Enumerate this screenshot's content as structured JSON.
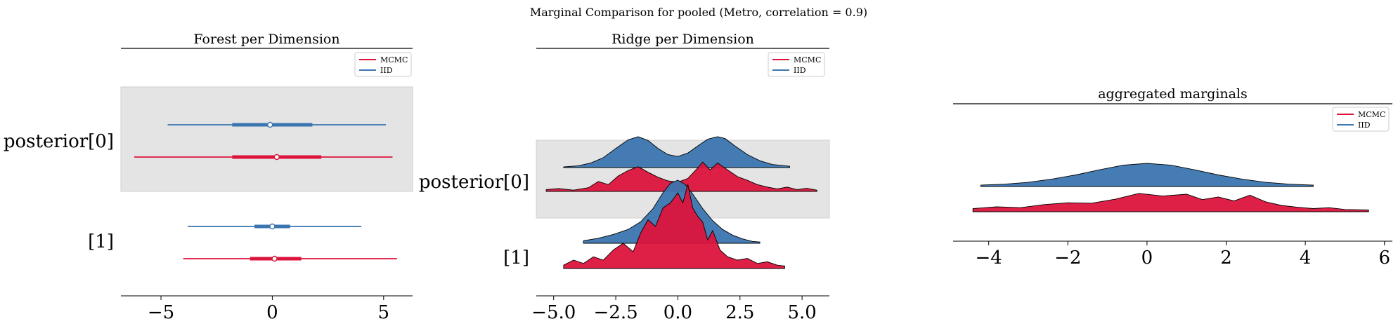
{
  "suptitle": "Marginal Comparison for pooled (Metro, correlation = 0.9)",
  "colors": {
    "mcmc": "#dc143c",
    "iid": "#3b75af",
    "band": "#e4e4e4"
  },
  "chart_data": [
    {
      "type": "forest",
      "title": "Forest per Dimension",
      "legend": {
        "placement": "upper-right",
        "entries": [
          "MCMC",
          "IID"
        ]
      },
      "xlim": [
        -6.8,
        6.3
      ],
      "xticks": [
        -5,
        0,
        5
      ],
      "xtick_labels": [
        "−5",
        "0",
        "5"
      ],
      "ylabels": [
        "posterior[0]",
        "[1]"
      ],
      "rows": [
        {
          "label": "posterior[0]",
          "band": true,
          "series": [
            {
              "name": "IID",
              "hdi94": [
                -4.7,
                5.1
              ],
              "hdi50": [
                -1.8,
                1.8
              ],
              "mean": -0.1
            },
            {
              "name": "MCMC",
              "hdi94": [
                -6.2,
                5.4
              ],
              "hdi50": [
                -1.8,
                2.2
              ],
              "mean": 0.2
            }
          ]
        },
        {
          "label": "[1]",
          "band": false,
          "series": [
            {
              "name": "IID",
              "hdi94": [
                -3.8,
                4.0
              ],
              "hdi50": [
                -0.8,
                0.8
              ],
              "mean": 0.0
            },
            {
              "name": "MCMC",
              "hdi94": [
                -4.0,
                5.6
              ],
              "hdi50": [
                -1.0,
                1.3
              ],
              "mean": 0.1
            }
          ]
        }
      ]
    },
    {
      "type": "ridgeline",
      "title": "Ridge per Dimension",
      "legend": {
        "placement": "upper-right",
        "entries": [
          "MCMC",
          "IID"
        ]
      },
      "xlim": [
        -5.7,
        6.1
      ],
      "xticks": [
        -5.0,
        -2.5,
        0.0,
        2.5,
        5.0
      ],
      "xtick_labels": [
        "−5.0",
        "−2.5",
        "0.0",
        "2.5",
        "5.0"
      ],
      "ylabels": [
        "posterior[0]",
        "[1]"
      ],
      "rows": [
        {
          "label": "posterior[0]",
          "band": true,
          "series": [
            {
              "name": "IID",
              "range": [
                -4.6,
                4.5
              ],
              "x": [
                -4.6,
                -4,
                -3.5,
                -3,
                -2.5,
                -2,
                -1.6,
                -1.2,
                -0.8,
                -0.4,
                0,
                0.4,
                0.8,
                1.2,
                1.6,
                1.9,
                2.3,
                2.8,
                3.3,
                3.8,
                4.5
              ],
              "y": [
                0.02,
                0.06,
                0.15,
                0.32,
                0.62,
                0.9,
                1.0,
                0.88,
                0.62,
                0.42,
                0.36,
                0.47,
                0.7,
                0.92,
                1.0,
                0.94,
                0.7,
                0.42,
                0.22,
                0.1,
                0.04
              ]
            },
            {
              "name": "MCMC",
              "range": [
                -5.3,
                5.6
              ],
              "x": [
                -5.3,
                -4.8,
                -4.2,
                -3.6,
                -3.2,
                -2.8,
                -2.4,
                -2,
                -1.6,
                -1.2,
                -0.8,
                -0.4,
                0,
                0.4,
                0.8,
                1.0,
                1.3,
                1.6,
                2,
                2.4,
                2.8,
                3.2,
                3.6,
                4,
                4.4,
                4.8,
                5.2,
                5.6
              ],
              "y": [
                0.06,
                0.09,
                0.04,
                0.12,
                0.32,
                0.22,
                0.5,
                0.68,
                0.8,
                0.62,
                0.46,
                0.34,
                0.3,
                0.42,
                0.76,
                0.95,
                0.7,
                0.92,
                0.7,
                0.48,
                0.36,
                0.22,
                0.14,
                0.08,
                0.14,
                0.06,
                0.1,
                0.04
              ]
            }
          ]
        },
        {
          "label": "[1]",
          "band": false,
          "series": [
            {
              "name": "IID",
              "range": [
                -3.8,
                3.3
              ],
              "x": [
                -3.8,
                -3.2,
                -2.6,
                -2,
                -1.5,
                -1,
                -0.6,
                -0.3,
                0,
                0.3,
                0.6,
                1,
                1.4,
                1.8,
                2.2,
                2.6,
                3.0,
                3.3
              ],
              "y": [
                0.04,
                0.08,
                0.14,
                0.22,
                0.34,
                0.55,
                0.8,
                0.95,
                1.0,
                0.93,
                0.78,
                0.55,
                0.36,
                0.22,
                0.13,
                0.07,
                0.03,
                0.02
              ]
            },
            {
              "name": "MCMC",
              "range": [
                -4.6,
                4.3
              ],
              "x": [
                -4.6,
                -4.2,
                -3.8,
                -3.4,
                -3,
                -2.6,
                -2.2,
                -1.8,
                -1.5,
                -1.2,
                -0.9,
                -0.6,
                -0.3,
                0,
                0.2,
                0.4,
                0.6,
                0.8,
                1.0,
                1.2,
                1.4,
                1.7,
                2,
                2.4,
                2.8,
                3.2,
                3.6,
                4.0,
                4.3
              ],
              "y": [
                0.04,
                0.1,
                0.06,
                0.14,
                0.1,
                0.22,
                0.3,
                0.2,
                0.42,
                0.58,
                0.5,
                0.72,
                0.78,
                0.9,
                0.78,
                1.0,
                0.72,
                0.62,
                0.55,
                0.34,
                0.45,
                0.22,
                0.14,
                0.1,
                0.12,
                0.06,
                0.08,
                0.04,
                0.03
              ]
            }
          ]
        }
      ]
    },
    {
      "type": "area",
      "title": "aggregated marginals",
      "legend": {
        "placement": "upper-right",
        "entries": [
          "MCMC",
          "IID"
        ]
      },
      "xlim": [
        -4.9,
        6.2
      ],
      "xticks": [
        -4,
        -2,
        0,
        2,
        4,
        6
      ],
      "xtick_labels": [
        "−4",
        "−2",
        "0",
        "2",
        "4",
        "6"
      ],
      "series": [
        {
          "name": "IID",
          "range": [
            -4.2,
            4.2
          ],
          "x": [
            -4.2,
            -3.6,
            -3,
            -2.4,
            -1.8,
            -1.2,
            -0.6,
            0,
            0.6,
            1.2,
            1.8,
            2.4,
            3,
            3.6,
            4.2
          ],
          "y": [
            0.06,
            0.1,
            0.18,
            0.32,
            0.5,
            0.72,
            0.92,
            1.0,
            0.92,
            0.72,
            0.5,
            0.32,
            0.18,
            0.1,
            0.06
          ]
        },
        {
          "name": "MCMC",
          "range": [
            -4.4,
            5.6
          ],
          "x": [
            -4.4,
            -3.8,
            -3.2,
            -2.6,
            -2,
            -1.4,
            -0.8,
            -0.2,
            0.4,
            1,
            1.4,
            1.8,
            2.2,
            2.6,
            3,
            3.4,
            3.8,
            4.2,
            4.6,
            5,
            5.6
          ],
          "y": [
            0.14,
            0.22,
            0.18,
            0.32,
            0.4,
            0.38,
            0.56,
            0.82,
            0.7,
            0.78,
            0.54,
            0.66,
            0.48,
            0.74,
            0.44,
            0.28,
            0.2,
            0.14,
            0.18,
            0.1,
            0.08
          ]
        }
      ]
    }
  ]
}
